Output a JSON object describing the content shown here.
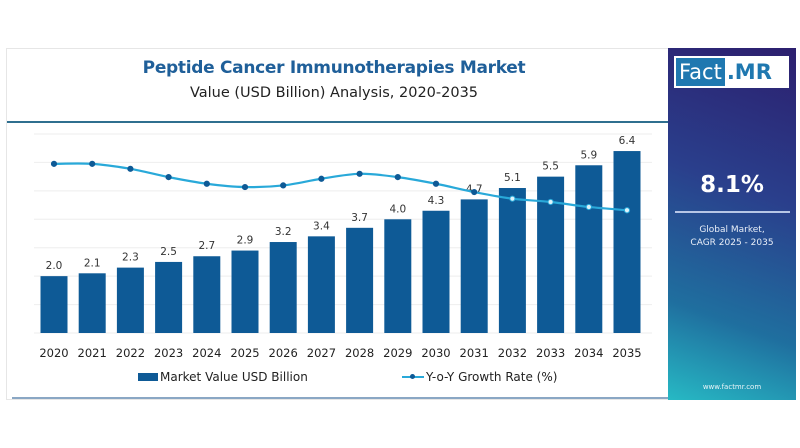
{
  "header": {
    "title": "Peptide Cancer Immunotherapies Market",
    "subtitle": "Value (USD Billion) Analysis, 2020-2035"
  },
  "sidebar": {
    "logo_fact": "Fact",
    "logo_mr": ".MR",
    "cagr_value": "8.1%",
    "cagr_label_line1": "Global Market,",
    "cagr_label_line2": "CAGR 2025 - 2035",
    "website": "www.factmr.com"
  },
  "colors": {
    "bar": "#0e5a96",
    "line": "#29a9d9",
    "marker": "#0e5a96",
    "title": "#1f5f99"
  },
  "chart_data": {
    "type": "bar",
    "title": "Peptide Cancer Immunotherapies Market",
    "subtitle": "Value (USD Billion) Analysis, 2020-2035",
    "xlabel": "",
    "ylabel": "",
    "categories": [
      "2020",
      "2021",
      "2022",
      "2023",
      "2024",
      "2025",
      "2026",
      "2027",
      "2028",
      "2029",
      "2030",
      "2031",
      "2032",
      "2033",
      "2034",
      "2035"
    ],
    "series": [
      {
        "name": "Market Value USD Billion",
        "type": "bar",
        "values": [
          2.0,
          2.1,
          2.3,
          2.5,
          2.7,
          2.9,
          3.2,
          3.4,
          3.7,
          4.0,
          4.3,
          4.7,
          5.1,
          5.5,
          5.9,
          6.4
        ],
        "labels": [
          "2.0",
          "2.1",
          "2.3",
          "2.5",
          "2.7",
          "2.9",
          "3.2",
          "3.4",
          "3.7",
          "4.0",
          "4.3",
          "4.7",
          "5.1",
          "5.5",
          "5.9",
          "6.4"
        ]
      },
      {
        "name": "Y-o-Y Growth Rate (%)",
        "type": "line",
        "values": [
          10.2,
          10.2,
          9.9,
          9.4,
          9.0,
          8.8,
          8.9,
          9.3,
          9.6,
          9.4,
          9.0,
          8.5,
          8.1,
          7.9,
          7.6,
          7.4
        ],
        "axis": "secondary (unlabeled, values estimated)"
      }
    ],
    "ylim": [
      0,
      7
    ],
    "y2lim": [
      0,
      12
    ],
    "grid": true,
    "legend": "bottom",
    "legend_entries": [
      "Market Value USD Billion",
      "Y-o-Y Growth Rate (%)"
    ]
  }
}
